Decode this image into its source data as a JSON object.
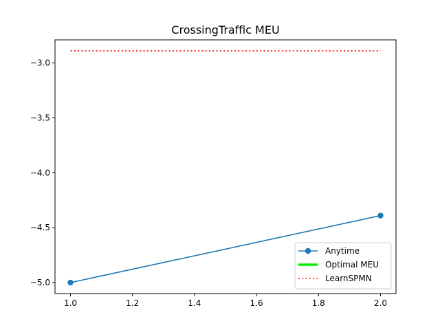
{
  "chart_data": {
    "type": "line",
    "title": "CrossingTraffic MEU",
    "xlabel": "",
    "ylabel": "",
    "xlim": [
      0.95,
      2.05
    ],
    "ylim": [
      -5.1,
      -2.79
    ],
    "x_ticks": [
      1.0,
      1.2,
      1.4,
      1.6,
      1.8,
      2.0
    ],
    "x_tick_labels": [
      "1.0",
      "1.2",
      "1.4",
      "1.6",
      "1.8",
      "2.0"
    ],
    "y_ticks": [
      -3.0,
      -3.5,
      -4.0,
      -4.5,
      -5.0
    ],
    "y_tick_labels": [
      "−3.0",
      "−3.5",
      "−4.0",
      "−4.5",
      "−5.0"
    ],
    "grid": false,
    "legend_position": "lower-right",
    "series": [
      {
        "name": "Anytime",
        "x": [
          1.0,
          2.0
        ],
        "y": [
          -5.0,
          -4.39
        ],
        "color": "#1f77b4",
        "style": "solid-marker"
      },
      {
        "name": "Optimal MEU",
        "x": [],
        "y": [],
        "color": "#00ee00",
        "style": "thick-solid"
      },
      {
        "name": "LearnSPMN",
        "x": [
          1.0,
          2.0
        ],
        "y": [
          -2.89,
          -2.89
        ],
        "color": "#ff0000",
        "style": "dotted"
      }
    ]
  }
}
